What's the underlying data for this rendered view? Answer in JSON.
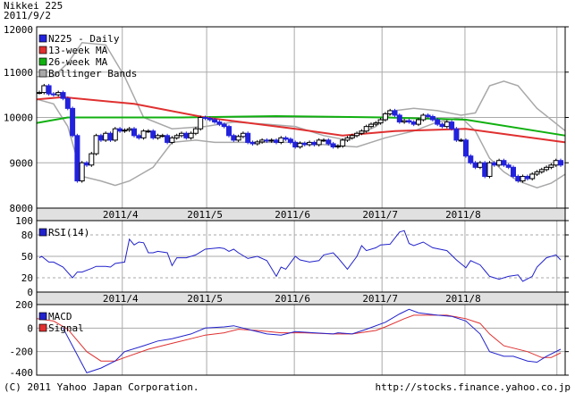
{
  "header": {
    "title": "Nikkei 225",
    "date": "2011/9/2"
  },
  "footer": {
    "copyright": "(C) 2011 Yahoo Japan Corporation.",
    "url": "http://stocks.finance.yahoo.co.jp"
  },
  "colors": {
    "candle_down": "#2222dd",
    "ma13": "#e03030",
    "ma26": "#10b010",
    "bollinger": "#a8a8a8",
    "rsi": "#2222cc",
    "macd": "#2222cc",
    "signal": "#e03030",
    "axis_band": "#e0e0e0"
  },
  "chart_data": [
    {
      "type": "candlestick",
      "title": "Nikkei 225",
      "ylim": [
        8000,
        12000
      ],
      "yticks": [
        "12000",
        "11000",
        "10000",
        "9000",
        "8000"
      ],
      "ytick_values": [
        12000,
        11000,
        10000,
        9000,
        8000
      ],
      "xticks": [
        {
          "label": "2011/4",
          "day": 17.5
        },
        {
          "label": "2011/5",
          "day": 35.3
        },
        {
          "label": "2011/6",
          "day": 53.8
        },
        {
          "label": "2011/7",
          "day": 72.3
        },
        {
          "label": "2011/8",
          "day": 89.8
        },
        {
          "label": "",
          "day": 109.2
        }
      ],
      "legend": [
        "N225 - Daily",
        "13-week MA",
        "26-week MA",
        "Bollinger Bands"
      ],
      "legend_position": "top-left",
      "close": [
        10550,
        10700,
        10520,
        10500,
        10550,
        10420,
        10200,
        9600,
        8600,
        9000,
        8950,
        9200,
        9600,
        9500,
        9650,
        9500,
        9750,
        9700,
        9720,
        9750,
        9600,
        9550,
        9700,
        9700,
        9550,
        9600,
        9600,
        9450,
        9550,
        9600,
        9650,
        9550,
        9650,
        9750,
        10000,
        9980,
        9950,
        9900,
        9850,
        9800,
        9600,
        9500,
        9580,
        9650,
        9450,
        9420,
        9460,
        9500,
        9480,
        9500,
        9450,
        9550,
        9520,
        9450,
        9350,
        9430,
        9400,
        9450,
        9400,
        9500,
        9500,
        9420,
        9350,
        9370,
        9500,
        9550,
        9600,
        9650,
        9700,
        9800,
        9850,
        9880,
        9950,
        10080,
        10150,
        10050,
        9900,
        9930,
        9900,
        9850,
        9950,
        10050,
        10020,
        9950,
        9850,
        9800,
        9900,
        9750,
        9500,
        9500,
        9150,
        9000,
        8900,
        9000,
        8700,
        9000,
        8950,
        9050,
        8950,
        8900,
        8700,
        8600,
        8700,
        8650,
        8750,
        8800,
        8850,
        8900,
        8950,
        9050,
        8950
      ],
      "ma13": [
        [
          -0.5,
          10400
        ],
        [
          5,
          10450
        ],
        [
          20,
          10300
        ],
        [
          35,
          10000
        ],
        [
          54,
          9750
        ],
        [
          64,
          9600
        ],
        [
          75,
          9700
        ],
        [
          90,
          9750
        ],
        [
          111,
          9450
        ]
      ],
      "ma26": [
        [
          -0.5,
          9880
        ],
        [
          6,
          10000
        ],
        [
          30,
          10000
        ],
        [
          50,
          10030
        ],
        [
          73,
          10000
        ],
        [
          90,
          9950
        ],
        [
          111,
          9600
        ]
      ],
      "bollinger_upper": [
        [
          -0.5,
          10900
        ],
        [
          3,
          10900
        ],
        [
          6,
          11200
        ],
        [
          9,
          11650
        ],
        [
          14,
          11600
        ],
        [
          18,
          10900
        ],
        [
          22,
          10000
        ],
        [
          28,
          9750
        ],
        [
          35,
          9800
        ],
        [
          41,
          9900
        ],
        [
          48,
          9850
        ],
        [
          54,
          9800
        ],
        [
          60,
          9600
        ],
        [
          65,
          9500
        ],
        [
          71,
          9800
        ],
        [
          75,
          10150
        ],
        [
          79,
          10200
        ],
        [
          84,
          10150
        ],
        [
          89,
          10050
        ],
        [
          92,
          10100
        ],
        [
          95,
          10700
        ],
        [
          98,
          10800
        ],
        [
          101,
          10700
        ],
        [
          105,
          10200
        ],
        [
          111,
          9700
        ]
      ],
      "bollinger_lower": [
        [
          -0.5,
          10400
        ],
        [
          3,
          10300
        ],
        [
          6,
          9800
        ],
        [
          9,
          8700
        ],
        [
          13,
          8600
        ],
        [
          16,
          8500
        ],
        [
          19,
          8600
        ],
        [
          24,
          8900
        ],
        [
          28,
          9450
        ],
        [
          33,
          9500
        ],
        [
          37,
          9450
        ],
        [
          48,
          9450
        ],
        [
          54,
          9450
        ],
        [
          60,
          9400
        ],
        [
          67,
          9350
        ],
        [
          73,
          9550
        ],
        [
          79,
          9700
        ],
        [
          84,
          9900
        ],
        [
          89,
          10000
        ],
        [
          92,
          9700
        ],
        [
          95,
          9100
        ],
        [
          98,
          8800
        ],
        [
          101,
          8600
        ],
        [
          105,
          8450
        ],
        [
          108,
          8550
        ],
        [
          111,
          8750
        ]
      ]
    },
    {
      "type": "line",
      "title": "RSI(14)",
      "ylim": [
        0,
        100
      ],
      "yticks": [
        "100",
        "80",
        "50",
        "20",
        "0"
      ],
      "ytick_values": [
        100,
        80,
        50,
        20,
        0
      ],
      "legend": [
        "RSI(14)"
      ],
      "series": [
        {
          "name": "RSI(14)",
          "points": [
            [
              0,
              48
            ],
            [
              0.5,
              50
            ],
            [
              2,
              42
            ],
            [
              3,
              42
            ],
            [
              5,
              35
            ],
            [
              7,
              20
            ],
            [
              8,
              28
            ],
            [
              9,
              28
            ],
            [
              11,
              33
            ],
            [
              12,
              36
            ],
            [
              14,
              36
            ],
            [
              15,
              35
            ],
            [
              16,
              40
            ],
            [
              18,
              42
            ],
            [
              19,
              74
            ],
            [
              20,
              66
            ],
            [
              21,
              70
            ],
            [
              22,
              69
            ],
            [
              23,
              55
            ],
            [
              24,
              55
            ],
            [
              25,
              57
            ],
            [
              27,
              55
            ],
            [
              28,
              37
            ],
            [
              29,
              48
            ],
            [
              31,
              48
            ],
            [
              32,
              50
            ],
            [
              33,
              52
            ],
            [
              34,
              56
            ],
            [
              35,
              60
            ],
            [
              38,
              62
            ],
            [
              39,
              61
            ],
            [
              40,
              57
            ],
            [
              41,
              60
            ],
            [
              42,
              55
            ],
            [
              44,
              47
            ],
            [
              46,
              50
            ],
            [
              48,
              44
            ],
            [
              50,
              22
            ],
            [
              51,
              35
            ],
            [
              52,
              32
            ],
            [
              54,
              50
            ],
            [
              55,
              45
            ],
            [
              57,
              42
            ],
            [
              59,
              44
            ],
            [
              60,
              52
            ],
            [
              62,
              55
            ],
            [
              63,
              48
            ],
            [
              65,
              32
            ],
            [
              67,
              50
            ],
            [
              68,
              65
            ],
            [
              69,
              58
            ],
            [
              71,
              62
            ],
            [
              72,
              66
            ],
            [
              74,
              67
            ],
            [
              76,
              84
            ],
            [
              77,
              86
            ],
            [
              78,
              68
            ],
            [
              79,
              65
            ],
            [
              81,
              70
            ],
            [
              83,
              62
            ],
            [
              86,
              58
            ],
            [
              88,
              45
            ],
            [
              90,
              34
            ],
            [
              91,
              44
            ],
            [
              93,
              38
            ],
            [
              94,
              30
            ],
            [
              95,
              22
            ],
            [
              97,
              18
            ],
            [
              99,
              22
            ],
            [
              101,
              24
            ],
            [
              102,
              15
            ],
            [
              104,
              22
            ],
            [
              105,
              35
            ],
            [
              107,
              48
            ],
            [
              109,
              52
            ],
            [
              110,
              45
            ]
          ]
        }
      ]
    },
    {
      "type": "line",
      "title": "MACD",
      "ylim": [
        -400,
        200
      ],
      "yticks": [
        "200",
        "0",
        "-200",
        "-400"
      ],
      "ytick_values": [
        200,
        0,
        -200,
        -400
      ],
      "legend": [
        "MACD",
        "Signal"
      ],
      "series": [
        {
          "name": "MACD",
          "points": [
            [
              5,
              0
            ],
            [
              10,
              -380
            ],
            [
              13,
              -340
            ],
            [
              16,
              -280
            ],
            [
              18,
              -200
            ],
            [
              22,
              -150
            ],
            [
              25,
              -110
            ],
            [
              28,
              -90
            ],
            [
              32,
              -50
            ],
            [
              35,
              0
            ],
            [
              39,
              10
            ],
            [
              41,
              20
            ],
            [
              45,
              -20
            ],
            [
              48,
              -50
            ],
            [
              51,
              -60
            ],
            [
              54,
              -30
            ],
            [
              58,
              -40
            ],
            [
              62,
              -50
            ],
            [
              63,
              -40
            ],
            [
              66,
              -50
            ],
            [
              69,
              -10
            ],
            [
              73,
              50
            ],
            [
              76,
              120
            ],
            [
              78,
              160
            ],
            [
              80,
              130
            ],
            [
              84,
              110
            ],
            [
              87,
              100
            ],
            [
              90,
              60
            ],
            [
              93,
              -50
            ],
            [
              95,
              -200
            ],
            [
              98,
              -240
            ],
            [
              100,
              -240
            ],
            [
              103,
              -280
            ],
            [
              105,
              -290
            ],
            [
              107,
              -240
            ],
            [
              110,
              -180
            ]
          ]
        },
        {
          "name": "Signal",
          "points": [
            [
              -0.5,
              80
            ],
            [
              3,
              60
            ],
            [
              6,
              -10
            ],
            [
              10,
              -200
            ],
            [
              13,
              -280
            ],
            [
              16,
              -280
            ],
            [
              18,
              -250
            ],
            [
              23,
              -180
            ],
            [
              28,
              -130
            ],
            [
              32,
              -90
            ],
            [
              35,
              -60
            ],
            [
              39,
              -40
            ],
            [
              42,
              -10
            ],
            [
              46,
              -20
            ],
            [
              51,
              -40
            ],
            [
              56,
              -40
            ],
            [
              62,
              -50
            ],
            [
              66,
              -50
            ],
            [
              71,
              -20
            ],
            [
              73,
              10
            ],
            [
              77,
              80
            ],
            [
              79,
              110
            ],
            [
              86,
              110
            ],
            [
              90,
              80
            ],
            [
              93,
              40
            ],
            [
              95,
              -50
            ],
            [
              98,
              -150
            ],
            [
              103,
              -200
            ],
            [
              106,
              -250
            ],
            [
              108,
              -250
            ],
            [
              110,
              -210
            ]
          ]
        }
      ]
    }
  ]
}
